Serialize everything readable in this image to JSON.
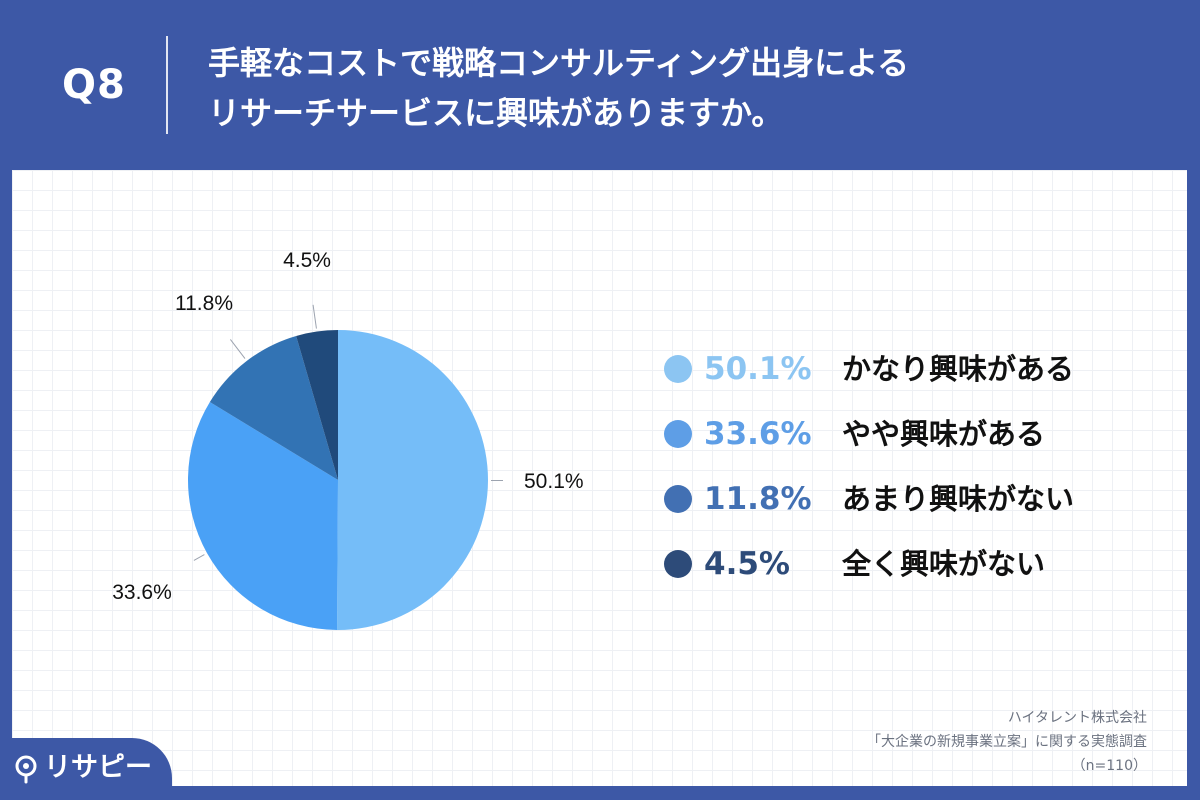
{
  "header": {
    "question_number": "Q8",
    "title_line1": "手軽なコストで戦略コンサルティング出身による",
    "title_line2": "リサーチサービスに興味がありますか。"
  },
  "chart_data": {
    "type": "pie",
    "slices": [
      {
        "label": "かなり興味がある",
        "value": 50.1,
        "display": "50.1%",
        "color": "#75bdf8"
      },
      {
        "label": "やや興味がある",
        "value": 33.6,
        "display": "33.6%",
        "color": "#4aa1f6"
      },
      {
        "label": "あまり興味がない",
        "value": 11.8,
        "display": "11.8%",
        "color": "#3273b4"
      },
      {
        "label": "全く興味がない",
        "value": 4.5,
        "display": "4.5%",
        "color": "#204a7b"
      }
    ]
  },
  "legend_colors": [
    "#8cc5f2",
    "#5e9ee6",
    "#4270b3",
    "#2d4b79"
  ],
  "source": {
    "line1": "ハイタレント株式会社",
    "line2": "「大企業の新規事業立案」に関する実態調査",
    "line3": "（n=110）"
  },
  "brand": {
    "name": "リサピー",
    "icon": "magnifier-icon"
  }
}
